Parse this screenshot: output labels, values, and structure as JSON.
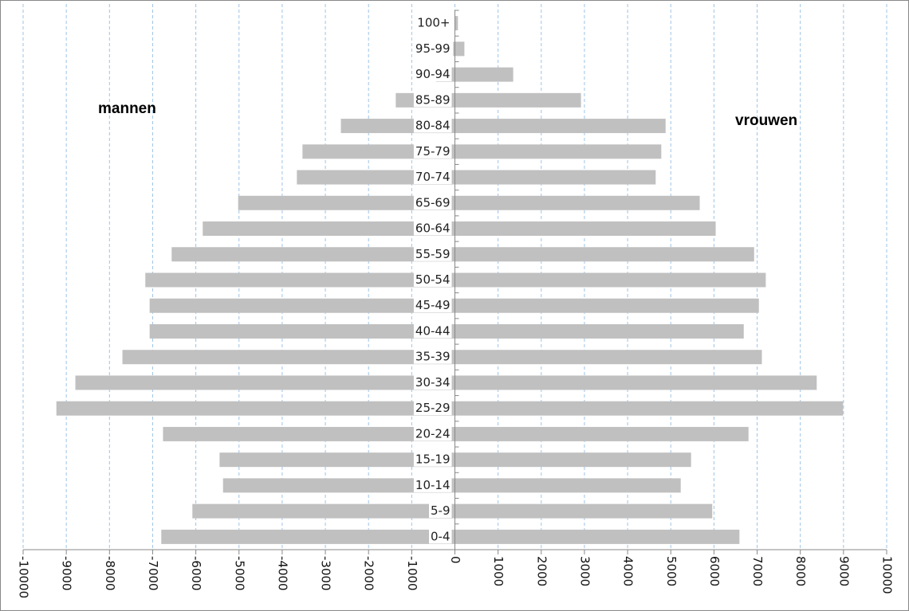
{
  "chart_data": {
    "type": "pyramid",
    "categories": [
      "0-4",
      "5-9",
      "10-14",
      "15-19",
      "20-24",
      "25-29",
      "30-34",
      "35-39",
      "40-44",
      "45-49",
      "50-54",
      "55-59",
      "60-64",
      "65-69",
      "70-74",
      "75-79",
      "80-84",
      "85-89",
      "90-94",
      "95-99",
      "100+"
    ],
    "series": [
      {
        "name": "mannen",
        "color": "#c0c0c0",
        "values": [
          -6800,
          -6080,
          -5370,
          -5450,
          -6760,
          -9230,
          -8790,
          -7700,
          -7070,
          -7070,
          -7170,
          -6560,
          -5840,
          -5020,
          -3660,
          -3530,
          -2640,
          -1370,
          -440,
          -40,
          -5
        ]
      },
      {
        "name": "vrouwen",
        "color": "#c0c0c0",
        "values": [
          6590,
          5960,
          5230,
          5470,
          6800,
          8990,
          8380,
          7110,
          6690,
          7040,
          7200,
          6930,
          6040,
          5670,
          4650,
          4780,
          4880,
          2920,
          1350,
          220,
          70
        ]
      }
    ],
    "xlim": [
      -10000,
      10000
    ],
    "xticks": [
      -10000,
      -9000,
      -8000,
      -7000,
      -6000,
      -5000,
      -4000,
      -3000,
      -2000,
      -1000,
      0,
      1000,
      2000,
      3000,
      4000,
      5000,
      6000,
      7000,
      8000,
      9000,
      10000
    ],
    "grid": true
  }
}
